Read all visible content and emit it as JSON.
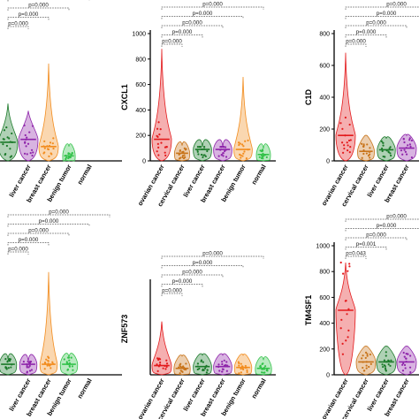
{
  "figure": {
    "groups": [
      "ovarian cancer",
      "cervical cancer",
      "liver cancer",
      "breast cancer",
      "benign tumor",
      "normal"
    ],
    "colors": {
      "ovarian cancer": "#e31a1c",
      "cervical cancer": "#c8741a",
      "liver cancer": "#1b7a2a",
      "breast cancer": "#8e24aa",
      "benign tumor": "#f28c1e",
      "normal": "#33c24a"
    }
  },
  "chart_data": [
    {
      "type": "violin",
      "ylabel": "",
      "ylim": [
        0,
        1000
      ],
      "yticks": [],
      "categories": [
        "liver cancer",
        "breast cancer",
        "benign tumor",
        "normal"
      ],
      "first_visible_index": 2,
      "pvalues": [
        "p=0.000",
        "p=0.000",
        "p=0.000",
        "p=0.000",
        "p=0.000"
      ],
      "series": [
        {
          "name": "cervical cancer",
          "median": 80,
          "max": 160
        },
        {
          "name": "liver cancer",
          "median": 130,
          "max": 400
        },
        {
          "name": "breast cancer",
          "median": 150,
          "max": 350
        },
        {
          "name": "benign tumor",
          "median": 100,
          "max": 680
        },
        {
          "name": "normal",
          "median": 35,
          "max": 100
        }
      ]
    },
    {
      "type": "violin",
      "ylabel": "CXCL1",
      "ylim": [
        0,
        1000
      ],
      "yticks": [
        0,
        200,
        400,
        600,
        800,
        1000
      ],
      "categories": [
        "ovarian cancer",
        "cervical cancer",
        "liver cancer",
        "breast cancer",
        "benign tumor",
        "normal"
      ],
      "first_visible_index": 0,
      "pvalues": [
        "p=0.000",
        "p=0.000",
        "p=0.000",
        "p=0.000",
        "p=0.000"
      ],
      "series": [
        {
          "name": "ovarian cancer",
          "median": 170,
          "max": 880
        },
        {
          "name": "cervical cancer",
          "median": 60,
          "max": 120
        },
        {
          "name": "liver cancer",
          "median": 90,
          "max": 110
        },
        {
          "name": "breast cancer",
          "median": 90,
          "max": 110
        },
        {
          "name": "benign tumor",
          "median": 90,
          "max": 660
        },
        {
          "name": "normal",
          "median": 50,
          "max": 95
        }
      ]
    },
    {
      "type": "violin",
      "ylabel": "C1D",
      "ylim": [
        0,
        800
      ],
      "yticks": [
        0,
        200,
        400,
        600,
        800
      ],
      "categories": [
        "ovarian cancer",
        "cervical cancer",
        "liver cancer",
        "breast cancer"
      ],
      "first_visible_index": 0,
      "pvalues": [
        "p=0.000",
        "p=0.000",
        "p=0.000",
        "p=0.000",
        "p=0.000"
      ],
      "series": [
        {
          "name": "ovarian cancer",
          "median": 160,
          "max": 680
        },
        {
          "name": "cervical cancer",
          "median": 60,
          "max": 160
        },
        {
          "name": "liver cancer",
          "median": 70,
          "max": 140
        },
        {
          "name": "breast cancer",
          "median": 80,
          "max": 160
        }
      ]
    },
    {
      "type": "violin",
      "ylabel": "",
      "ylim": [
        0,
        1000
      ],
      "yticks": [],
      "categories": [
        "liver cancer",
        "breast cancer",
        "benign tumor",
        "normal"
      ],
      "first_visible_index": 2,
      "pvalues": [
        "p=0.000",
        "p=0.000",
        "p=0.000",
        "p=0.000",
        "p=0.000"
      ],
      "series": [
        {
          "name": "cervical cancer",
          "median": 80,
          "max": 180
        },
        {
          "name": "liver cancer",
          "median": 80,
          "max": 120
        },
        {
          "name": "breast cancer",
          "median": 80,
          "max": 100
        },
        {
          "name": "benign tumor",
          "median": 80,
          "max": 780
        },
        {
          "name": "normal",
          "median": 80,
          "max": 130
        }
      ]
    },
    {
      "type": "violin",
      "ylabel": "ZNF573",
      "ylim": [
        0,
        1000
      ],
      "yticks": [],
      "categories": [
        "ovarian cancer",
        "cervical cancer",
        "liver cancer",
        "breast cancer",
        "benign tumor",
        "normal"
      ],
      "first_visible_index": 0,
      "pvalues": [
        "p=0.000",
        "p=0.000",
        "p=0.000",
        "p=0.000",
        "p=0.000"
      ],
      "series": [
        {
          "name": "ovarian cancer",
          "median": 100,
          "max": 580
        },
        {
          "name": "cervical cancer",
          "median": 70,
          "max": 200
        },
        {
          "name": "liver cancer",
          "median": 90,
          "max": 210
        },
        {
          "name": "breast cancer",
          "median": 90,
          "max": 210
        },
        {
          "name": "benign tumor",
          "median": 80,
          "max": 210
        },
        {
          "name": "normal",
          "median": 70,
          "max": 160
        }
      ]
    },
    {
      "type": "violin",
      "ylabel": "TM4SF1",
      "ylim": [
        0,
        1000
      ],
      "yticks": [
        0,
        200,
        400,
        600,
        800,
        1000
      ],
      "categories": [
        "ovarian cancer",
        "cervical cancer",
        "liver cancer",
        "breast cancer"
      ],
      "first_visible_index": 0,
      "pvalues": [
        "p=0.000",
        "p=0.000",
        "p=0.000",
        "p=0.001",
        "p=0.043"
      ],
      "series": [
        {
          "name": "ovarian cancer",
          "median": 500,
          "max": 870
        },
        {
          "name": "cervical cancer",
          "median": 100,
          "max": 220
        },
        {
          "name": "liver cancer",
          "median": 100,
          "max": 220
        },
        {
          "name": "breast cancer",
          "median": 100,
          "max": 220
        }
      ]
    }
  ]
}
